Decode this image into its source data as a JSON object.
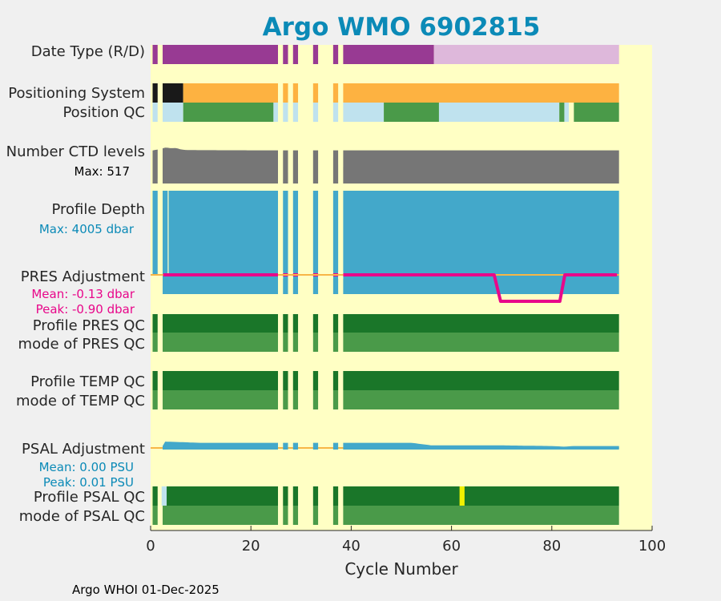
{
  "chart_data": {
    "type": "timeline",
    "title": "Argo WMO 6902815",
    "xlabel": "Cycle Number",
    "xlim": [
      0,
      100
    ],
    "xticks": [
      "0",
      "20",
      "40",
      "60",
      "80",
      "100"
    ],
    "footer": "Argo WHOI 01-Dec-2025",
    "rows": [
      {
        "key": "date_type",
        "label": "Date Type (R/D)"
      },
      {
        "key": "positioning_system",
        "label": "Positioning System"
      },
      {
        "key": "position_qc",
        "label": "Position QC"
      },
      {
        "key": "n_levels",
        "label": "Number CTD levels",
        "note": "Max: 517"
      },
      {
        "key": "profile_depth",
        "label": "Profile Depth",
        "note": "Max: 4005 dbar"
      },
      {
        "key": "pres_adjustment",
        "label": "PRES Adjustment",
        "notes": [
          "Mean: -0.13 dbar",
          "Peak: -0.90 dbar"
        ]
      },
      {
        "key": "profile_pres_qc",
        "label": "Profile PRES QC"
      },
      {
        "key": "mode_pres_qc",
        "label": "mode of PRES QC"
      },
      {
        "key": "profile_temp_qc",
        "label": "Profile TEMP QC"
      },
      {
        "key": "mode_temp_qc",
        "label": "mode of TEMP QC"
      },
      {
        "key": "psal_adjustment",
        "label": "PSAL Adjustment",
        "notes": [
          "Mean: 0.00 PSU",
          "Peak: 0.01 PSU"
        ]
      },
      {
        "key": "profile_psal_qc",
        "label": "Profile PSAL QC"
      },
      {
        "key": "mode_psal_qc",
        "label": "mode of PSAL QC"
      }
    ],
    "present_ranges": [
      [
        0.4,
        1.4
      ],
      [
        2.4,
        25.4
      ],
      [
        26.4,
        27.4
      ],
      [
        28.4,
        29.4
      ],
      [
        32.4,
        33.4
      ],
      [
        36.4,
        37.4
      ],
      [
        38.4,
        93.4
      ]
    ],
    "date_type_segments": [
      {
        "from": 0.4,
        "to": 56.5,
        "code": "D"
      },
      {
        "from": 56.5,
        "to": 93.4,
        "code": "R"
      }
    ],
    "positioning_segments": [
      {
        "from": 0.4,
        "to": 1.4,
        "system": "black"
      },
      {
        "from": 2.4,
        "to": 6.5,
        "system": "black"
      },
      {
        "from": 6.5,
        "to": 93.4,
        "system": "orange"
      }
    ],
    "position_qc_segments": [
      {
        "from": 0.4,
        "to": 1.4,
        "qc": "light"
      },
      {
        "from": 2.4,
        "to": 6.5,
        "qc": "light"
      },
      {
        "from": 6.5,
        "to": 24.5,
        "qc": "green"
      },
      {
        "from": 24.5,
        "to": 46.5,
        "qc": "light"
      },
      {
        "from": 46.5,
        "to": 57.5,
        "qc": "green"
      },
      {
        "from": 57.5,
        "to": 81.5,
        "qc": "light"
      },
      {
        "from": 81.5,
        "to": 82.5,
        "qc": "green"
      },
      {
        "from": 82.5,
        "to": 83.4,
        "qc": "light"
      },
      {
        "from": 84.4,
        "to": 93.4,
        "qc": "green"
      }
    ],
    "n_levels": {
      "max": 517,
      "profile": [
        [
          0,
          470
        ],
        [
          2,
          495
        ],
        [
          3,
          517
        ],
        [
          4,
          505
        ],
        [
          5,
          510
        ],
        [
          6,
          490
        ],
        [
          7,
          480
        ],
        [
          10,
          478
        ],
        [
          20,
          476
        ],
        [
          30,
          476
        ],
        [
          40,
          476
        ],
        [
          50,
          476
        ],
        [
          60,
          476
        ],
        [
          70,
          476
        ],
        [
          80,
          476
        ],
        [
          90,
          476
        ],
        [
          93,
          476
        ]
      ]
    },
    "profile_depth": {
      "max_dbar": 4005,
      "dropouts": [
        [
          1.4,
          2.4
        ],
        [
          3.4,
          3.6
        ],
        [
          25.4,
          26.4
        ],
        [
          27.4,
          28.4
        ],
        [
          37.4,
          38.4
        ]
      ]
    },
    "pres_adjustment": {
      "mean": -0.13,
      "peak": -0.9,
      "unit": "dbar",
      "line": [
        [
          2.5,
          0
        ],
        [
          68.5,
          0
        ],
        [
          69.8,
          -0.9
        ],
        [
          81.6,
          -0.9
        ],
        [
          82.6,
          0
        ],
        [
          93,
          0
        ]
      ]
    },
    "psal_adjustment": {
      "mean": 0.0,
      "peak": 0.01,
      "unit": "PSU",
      "line": [
        [
          2.5,
          0.01
        ],
        [
          10,
          0.008
        ],
        [
          20,
          0.008
        ],
        [
          30,
          0.008
        ],
        [
          40,
          0.008
        ],
        [
          52,
          0.008
        ],
        [
          56,
          0.004
        ],
        [
          70,
          0.004
        ],
        [
          80,
          0.003
        ],
        [
          82.5,
          0.002
        ],
        [
          84.4,
          0.003
        ],
        [
          93,
          0.003
        ]
      ]
    },
    "psal_qc_flags": [
      {
        "cycle": 62,
        "qc": "yellow"
      },
      {
        "cycle": 2.6,
        "qc": "light"
      }
    ],
    "colors": {
      "background": "#ffffc4",
      "date_D": "#983a93",
      "date_R": "#deb8db",
      "pos_black": "#191919",
      "pos_orange": "#fdb241",
      "qc_light": "#bfe2ee",
      "qc_green": "#4a9a49",
      "qc_dark_green": "#1a7629",
      "qc_mode_green": "#4a9a49",
      "grey": "#767676",
      "depth_blue": "#43a8ca",
      "zero_line": "#f7b646",
      "pres_line": "#e8078a",
      "psal_fill": "#43a8ca",
      "yellow_flag": "#f0f000",
      "title": "#0b8ab7",
      "note_black": "#000000",
      "note_blue": "#0b8ab7",
      "note_pink": "#e8078a"
    }
  }
}
